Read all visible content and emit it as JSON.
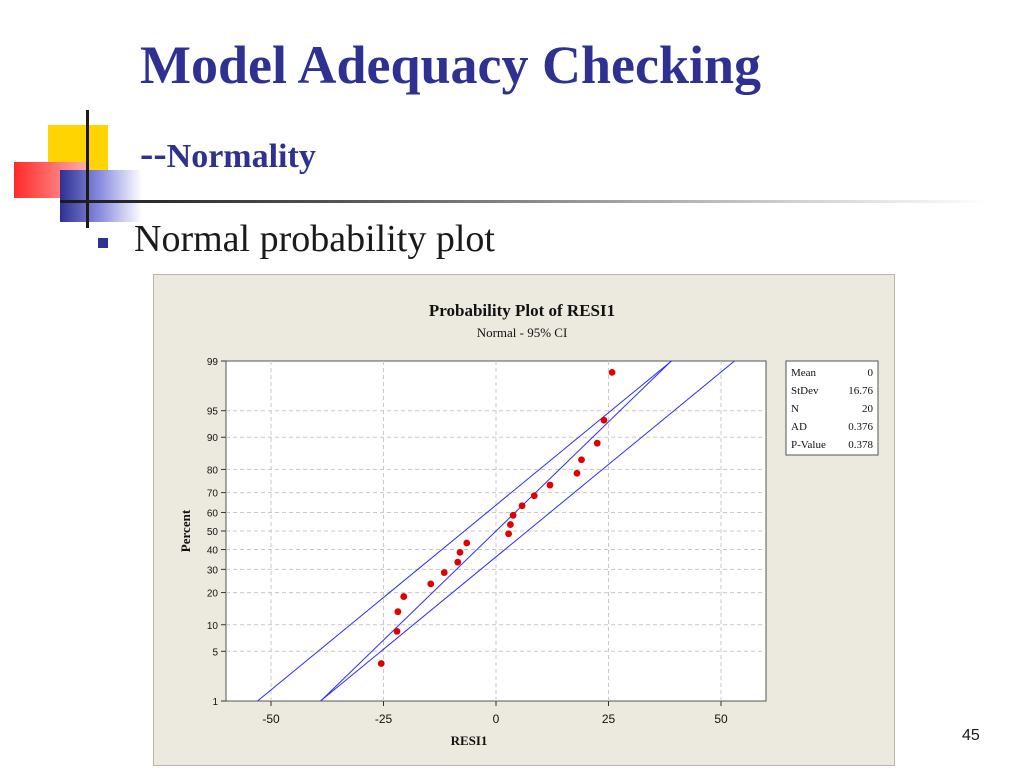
{
  "slide": {
    "title": "Model Adequacy Checking",
    "subtitle_dashes": "--",
    "subtitle": "Normality",
    "bullet": "Normal probability plot",
    "page_number": "45"
  },
  "colors": {
    "title": "#2e3192",
    "bullet": "#2e3192",
    "points": "#e00000",
    "fit_lines": "#2a2aff",
    "plot_background": "#eceade"
  },
  "chart_data": {
    "type": "scatter",
    "title": "Probability Plot of RESI1",
    "subtitle": "Normal - 95% CI",
    "xlabel": "RESI1",
    "ylabel": "Percent",
    "xlim": [
      -60,
      60
    ],
    "ylim": [
      1,
      99
    ],
    "y_scale": "normal-probability",
    "grid": true,
    "x_ticks": [
      -50,
      -25,
      0,
      25,
      50
    ],
    "y_ticks": [
      1,
      5,
      10,
      20,
      30,
      40,
      50,
      60,
      70,
      80,
      90,
      95,
      99
    ],
    "points": [
      {
        "x": -25.5,
        "y": 3.5
      },
      {
        "x": -22,
        "y": 8.5
      },
      {
        "x": -21.8,
        "y": 13.5
      },
      {
        "x": -20.5,
        "y": 18.5
      },
      {
        "x": -14.5,
        "y": 23.5
      },
      {
        "x": -11.5,
        "y": 28.5
      },
      {
        "x": -8.5,
        "y": 33.5
      },
      {
        "x": -8,
        "y": 38.5
      },
      {
        "x": -6.5,
        "y": 43.5
      },
      {
        "x": 2.8,
        "y": 48.5
      },
      {
        "x": 3.2,
        "y": 53.5
      },
      {
        "x": 3.8,
        "y": 58.5
      },
      {
        "x": 5.8,
        "y": 63.5
      },
      {
        "x": 8.5,
        "y": 68.5
      },
      {
        "x": 12,
        "y": 73.5
      },
      {
        "x": 18,
        "y": 78.5
      },
      {
        "x": 19,
        "y": 83.5
      },
      {
        "x": 22.5,
        "y": 88.5
      },
      {
        "x": 24,
        "y": 93.5
      },
      {
        "x": 25.8,
        "y": 98.5
      }
    ],
    "fit": {
      "mean": 0,
      "stdev": 16.76
    },
    "ci_lines": {
      "lower": [
        {
          "x": -39,
          "y": 1
        },
        {
          "x": 53,
          "y": 99
        }
      ],
      "upper": [
        {
          "x": -53,
          "y": 1
        },
        {
          "x": 39,
          "y": 99
        }
      ]
    },
    "stats": [
      {
        "label": "Mean",
        "value": "0"
      },
      {
        "label": "StDev",
        "value": "16.76"
      },
      {
        "label": "N",
        "value": "20"
      },
      {
        "label": "AD",
        "value": "0.376"
      },
      {
        "label": "P-Value",
        "value": "0.378"
      }
    ],
    "legend_placement": "right"
  }
}
